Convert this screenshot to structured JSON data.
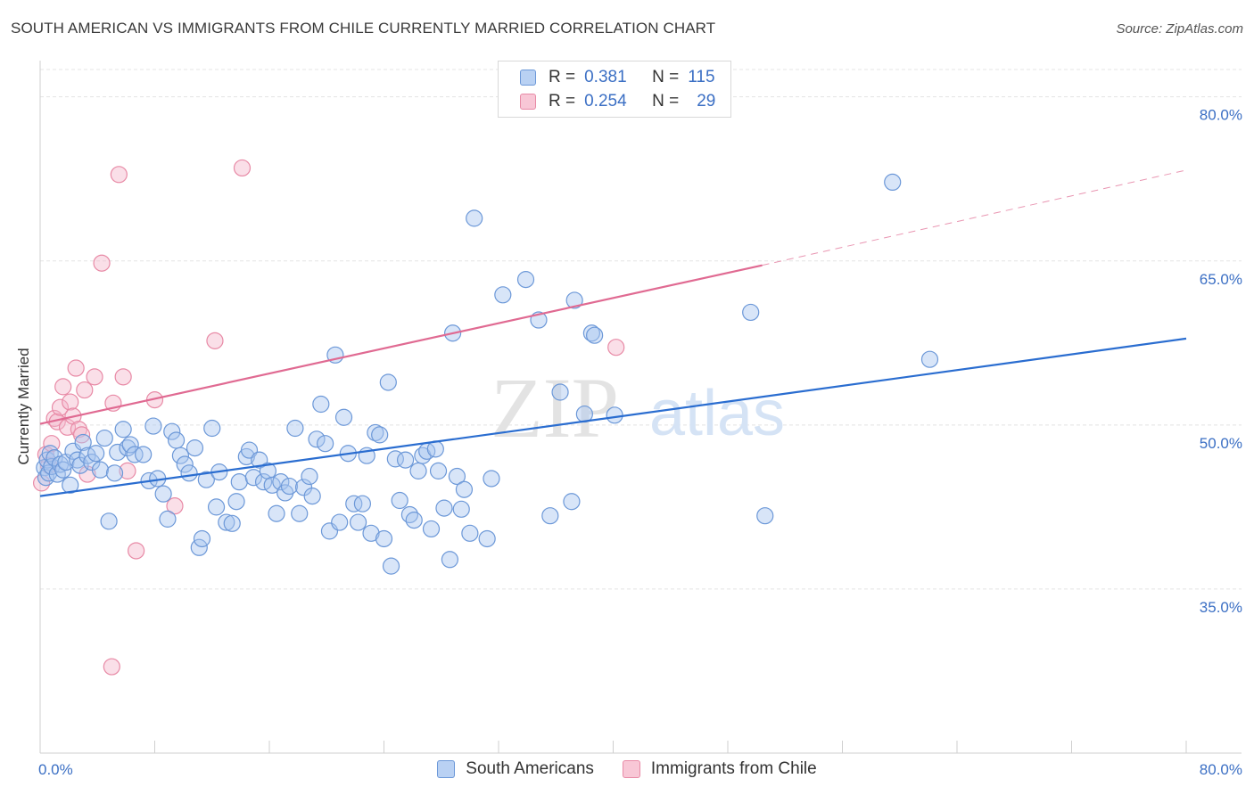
{
  "title": "SOUTH AMERICAN VS IMMIGRANTS FROM CHILE CURRENTLY MARRIED CORRELATION CHART",
  "source": "Source: ZipAtlas.com",
  "watermark": {
    "zip": "ZIP",
    "atlas": "atlas"
  },
  "legend_top": {
    "r_label": "R =",
    "n_label": "N =",
    "rows": [
      {
        "r": "0.381",
        "n": "115"
      },
      {
        "r": "0.254",
        "n": "29"
      }
    ]
  },
  "legend_bottom": [
    "South Americans",
    "Immigrants from Chile"
  ],
  "colors": {
    "blue_fill": "#a9c5ef",
    "blue_stroke": "#6c98d8",
    "blue_line": "#2a6dd0",
    "pink_fill": "#f5b8cb",
    "pink_stroke": "#e88aa6",
    "pink_line": "#e06a92",
    "grid": "#e4e4e4",
    "label": "#3b6fc4"
  },
  "chart_data": {
    "type": "scatter",
    "xlabel": "",
    "ylabel": "Currently Married",
    "xlim": [
      0,
      80
    ],
    "ylim": [
      20,
      82.5
    ],
    "x_tick_labels": [
      "0.0%",
      "80.0%"
    ],
    "y_ticks": [
      35,
      50,
      65,
      80
    ],
    "y_tick_labels": [
      "35.0%",
      "50.0%",
      "65.0%",
      "80.0%"
    ],
    "grid": true,
    "series": [
      {
        "name": "South Americans",
        "r": 0.381,
        "n": 115,
        "trend": {
          "x": [
            0,
            80
          ],
          "y": [
            43.5,
            57.9
          ]
        },
        "points": [
          [
            0.3,
            46.1
          ],
          [
            0.4,
            45.2
          ],
          [
            0.5,
            46.8
          ],
          [
            0.6,
            45.6
          ],
          [
            0.7,
            47.4
          ],
          [
            0.8,
            46.2
          ],
          [
            1.0,
            47.0
          ],
          [
            1.2,
            45.5
          ],
          [
            1.4,
            46.4
          ],
          [
            1.6,
            45.9
          ],
          [
            1.8,
            46.6
          ],
          [
            2.1,
            44.5
          ],
          [
            2.3,
            47.6
          ],
          [
            2.6,
            46.8
          ],
          [
            2.8,
            46.3
          ],
          [
            3.0,
            48.4
          ],
          [
            3.3,
            47.2
          ],
          [
            3.6,
            46.6
          ],
          [
            3.9,
            47.4
          ],
          [
            4.2,
            45.9
          ],
          [
            4.5,
            48.8
          ],
          [
            4.8,
            41.2
          ],
          [
            5.2,
            45.6
          ],
          [
            5.4,
            47.5
          ],
          [
            5.8,
            49.6
          ],
          [
            6.1,
            47.9
          ],
          [
            6.3,
            48.2
          ],
          [
            6.6,
            47.3
          ],
          [
            7.2,
            47.3
          ],
          [
            7.6,
            44.9
          ],
          [
            7.9,
            49.9
          ],
          [
            8.2,
            45.1
          ],
          [
            8.6,
            43.7
          ],
          [
            8.9,
            41.4
          ],
          [
            9.2,
            49.4
          ],
          [
            9.5,
            48.6
          ],
          [
            9.8,
            47.2
          ],
          [
            10.1,
            46.4
          ],
          [
            10.4,
            45.6
          ],
          [
            10.8,
            47.9
          ],
          [
            11.1,
            38.8
          ],
          [
            11.3,
            39.6
          ],
          [
            11.6,
            45.0
          ],
          [
            12.0,
            49.7
          ],
          [
            12.3,
            42.5
          ],
          [
            12.5,
            45.7
          ],
          [
            13.0,
            41.1
          ],
          [
            13.4,
            41.0
          ],
          [
            13.7,
            43.0
          ],
          [
            13.9,
            44.8
          ],
          [
            14.4,
            47.1
          ],
          [
            14.6,
            47.7
          ],
          [
            14.9,
            45.2
          ],
          [
            15.3,
            46.8
          ],
          [
            15.6,
            44.8
          ],
          [
            15.9,
            45.8
          ],
          [
            16.2,
            44.5
          ],
          [
            16.5,
            41.9
          ],
          [
            16.8,
            44.8
          ],
          [
            17.1,
            43.8
          ],
          [
            17.4,
            44.4
          ],
          [
            17.8,
            49.7
          ],
          [
            18.1,
            41.9
          ],
          [
            18.4,
            44.3
          ],
          [
            18.8,
            45.3
          ],
          [
            19.0,
            43.5
          ],
          [
            19.3,
            48.7
          ],
          [
            19.6,
            51.9
          ],
          [
            19.9,
            48.3
          ],
          [
            20.2,
            40.3
          ],
          [
            20.6,
            56.4
          ],
          [
            20.9,
            41.1
          ],
          [
            21.2,
            50.7
          ],
          [
            21.5,
            47.4
          ],
          [
            21.9,
            42.8
          ],
          [
            22.2,
            41.1
          ],
          [
            22.5,
            42.8
          ],
          [
            22.8,
            47.2
          ],
          [
            23.1,
            40.1
          ],
          [
            23.4,
            49.3
          ],
          [
            23.7,
            49.1
          ],
          [
            24.0,
            39.6
          ],
          [
            24.3,
            53.9
          ],
          [
            24.5,
            37.1
          ],
          [
            24.8,
            46.9
          ],
          [
            25.1,
            43.1
          ],
          [
            25.5,
            46.8
          ],
          [
            25.8,
            41.8
          ],
          [
            26.1,
            41.3
          ],
          [
            26.4,
            45.8
          ],
          [
            26.7,
            47.2
          ],
          [
            27.0,
            47.6
          ],
          [
            27.3,
            40.5
          ],
          [
            27.6,
            47.8
          ],
          [
            27.8,
            45.8
          ],
          [
            28.2,
            42.4
          ],
          [
            28.6,
            37.7
          ],
          [
            28.8,
            58.4
          ],
          [
            29.1,
            45.3
          ],
          [
            29.4,
            42.3
          ],
          [
            29.6,
            44.1
          ],
          [
            30.0,
            40.1
          ],
          [
            30.3,
            68.9
          ],
          [
            31.2,
            39.6
          ],
          [
            31.5,
            45.1
          ],
          [
            32.3,
            61.9
          ],
          [
            33.9,
            63.3
          ],
          [
            34.8,
            59.6
          ],
          [
            35.6,
            41.7
          ],
          [
            36.3,
            53.0
          ],
          [
            37.1,
            43.0
          ],
          [
            37.3,
            61.4
          ],
          [
            38.0,
            51.0
          ],
          [
            38.5,
            58.4
          ],
          [
            38.7,
            58.2
          ],
          [
            40.1,
            50.9
          ],
          [
            49.6,
            60.3
          ],
          [
            50.6,
            41.7
          ],
          [
            59.5,
            72.2
          ],
          [
            62.1,
            56.0
          ]
        ]
      },
      {
        "name": "Immigrants from Chile",
        "r": 0.254,
        "n": 29,
        "trend": {
          "x": [
            0,
            50.4
          ],
          "y": [
            50.1,
            64.6
          ]
        },
        "trend_extension": {
          "x": [
            50.4,
            80
          ],
          "y": [
            64.6,
            73.3
          ]
        },
        "points": [
          [
            0.1,
            44.7
          ],
          [
            0.4,
            47.3
          ],
          [
            0.6,
            46.3
          ],
          [
            0.8,
            48.3
          ],
          [
            1.0,
            50.6
          ],
          [
            1.2,
            50.3
          ],
          [
            1.4,
            51.6
          ],
          [
            1.6,
            53.5
          ],
          [
            1.9,
            49.8
          ],
          [
            2.1,
            52.1
          ],
          [
            2.3,
            50.8
          ],
          [
            2.5,
            55.2
          ],
          [
            2.7,
            49.6
          ],
          [
            2.9,
            49.1
          ],
          [
            3.1,
            53.2
          ],
          [
            3.3,
            45.5
          ],
          [
            3.8,
            54.4
          ],
          [
            4.3,
            64.8
          ],
          [
            5.0,
            27.9
          ],
          [
            5.1,
            52.0
          ],
          [
            5.5,
            72.9
          ],
          [
            5.8,
            54.4
          ],
          [
            6.1,
            45.8
          ],
          [
            6.7,
            38.5
          ],
          [
            8.0,
            52.3
          ],
          [
            9.4,
            42.6
          ],
          [
            12.2,
            57.7
          ],
          [
            14.1,
            73.5
          ],
          [
            40.2,
            57.1
          ]
        ]
      }
    ]
  }
}
